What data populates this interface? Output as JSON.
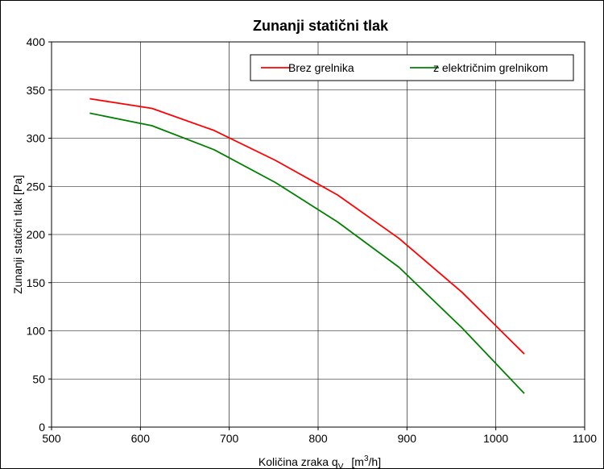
{
  "chart_data": {
    "type": "line",
    "title": "Zunanji statični tlak",
    "xlabel": {
      "main": "Količina zraka q",
      "sub": "V",
      "unit_open": "[m",
      "unit_sup": "3",
      "unit_close": "/h]"
    },
    "ylabel": "Zunanji statični tlak  [Pa]",
    "xlim": [
      500,
      1100
    ],
    "ylim": [
      0,
      400
    ],
    "x_ticks": [
      500,
      600,
      700,
      800,
      900,
      1000,
      1100
    ],
    "y_ticks": [
      0,
      50,
      100,
      150,
      200,
      250,
      300,
      350,
      400
    ],
    "grid": true,
    "legend_position": "top-right",
    "series": [
      {
        "name": "Brez grelnika",
        "color": "#ff0000",
        "x": [
          543,
          613,
          683,
          752,
          822,
          891,
          962,
          1032
        ],
        "y": [
          341,
          331,
          308,
          277,
          241,
          196,
          140,
          76
        ]
      },
      {
        "name": "z električnim grelnikom",
        "color": "#008000",
        "x": [
          543,
          613,
          683,
          752,
          822,
          891,
          962,
          1032
        ],
        "y": [
          326,
          313,
          288,
          254,
          213,
          166,
          103,
          35
        ]
      }
    ]
  }
}
